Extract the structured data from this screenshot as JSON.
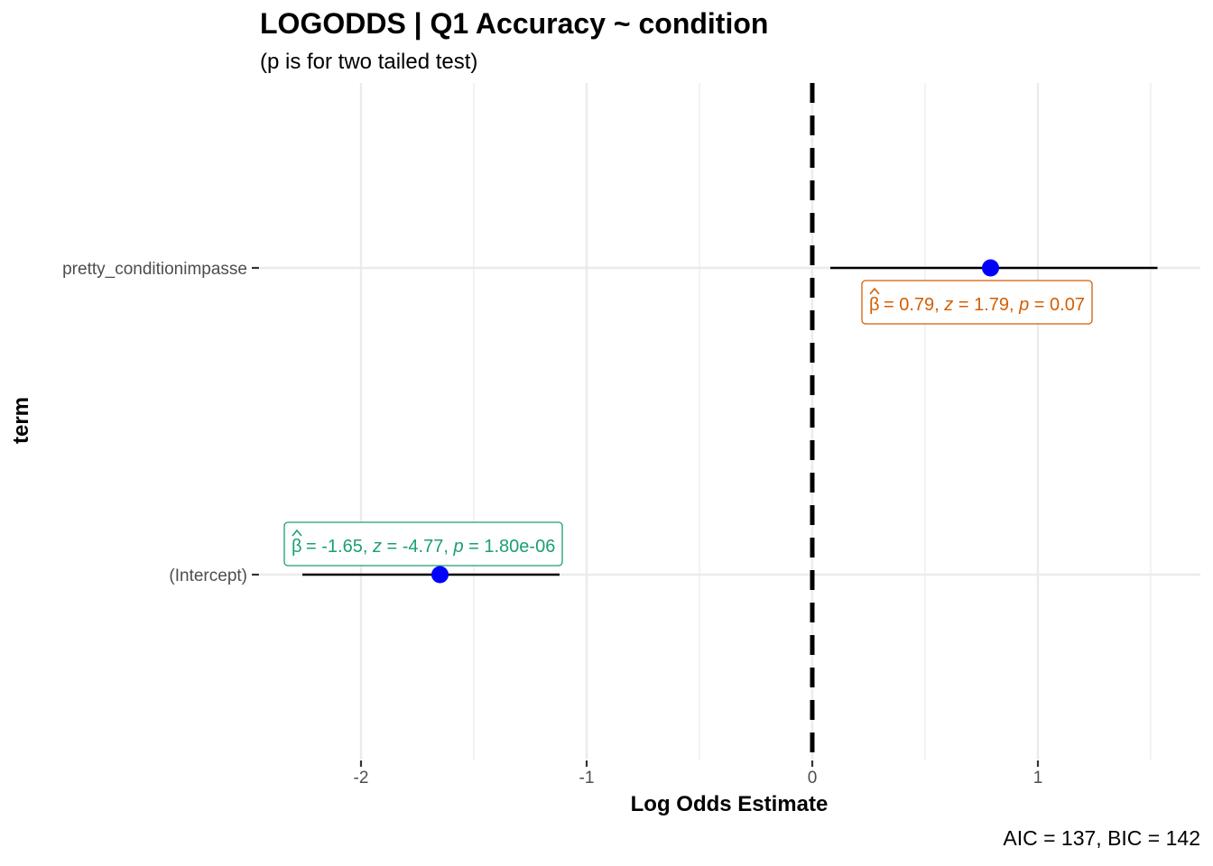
{
  "chart_data": {
    "type": "scatter",
    "title": "LOGODDS | Q1 Accuracy ~ condition",
    "subtitle": "(p is for two tailed test)",
    "xlabel": "Log Odds Estimate",
    "ylabel": "term",
    "caption": "AIC = 137, BIC = 142",
    "xlim": [
      -2.6,
      1.72
    ],
    "x_ticks": [
      -2,
      -1,
      0,
      1
    ],
    "x_tick_labels": [
      "-2",
      "-1",
      "0",
      "1"
    ],
    "reference_line": 0,
    "grid": true,
    "terms": [
      {
        "term": "pretty_conditionimpasse",
        "estimate": 0.79,
        "conf_low": 0.08,
        "conf_high": 1.53,
        "label_beta": "0.79",
        "label_z": "1.79",
        "label_p": "0.07",
        "label_color": "#d55e00"
      },
      {
        "term": "(Intercept)",
        "estimate": -1.65,
        "conf_low": -2.26,
        "conf_high": -1.12,
        "label_beta": "-1.65",
        "label_z": "-4.77",
        "label_p": "1.80e-06",
        "label_color": "#1b9e77"
      }
    ],
    "point_color": "#0000ff"
  }
}
